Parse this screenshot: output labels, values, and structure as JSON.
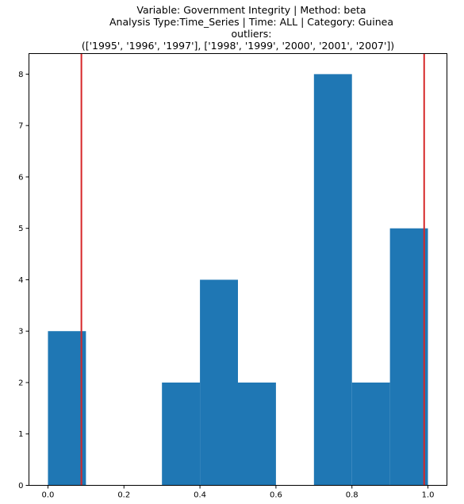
{
  "chart_data": {
    "type": "bar",
    "title_lines": [
      "Variable: Government Integrity | Method: beta",
      "Analysis Type:Time_Series | Time: ALL | Category: Guinea",
      "outliers:",
      "(['1995', '1996', '1997'], ['1998', '1999', '2000', '2001', '2007'])"
    ],
    "xlabel": "",
    "ylabel": "",
    "xlim": [
      -0.05,
      1.05
    ],
    "ylim": [
      0,
      8.4
    ],
    "x_ticks": [
      0.0,
      0.2,
      0.4,
      0.6,
      0.8,
      1.0
    ],
    "x_tick_labels": [
      "0.0",
      "0.2",
      "0.4",
      "0.6",
      "0.8",
      "1.0"
    ],
    "y_ticks": [
      0,
      1,
      2,
      3,
      4,
      5,
      6,
      7,
      8
    ],
    "y_tick_labels": [
      "0",
      "1",
      "2",
      "3",
      "4",
      "5",
      "6",
      "7",
      "8"
    ],
    "bins": [
      {
        "start": 0.0,
        "end": 0.1,
        "count": 3
      },
      {
        "start": 0.1,
        "end": 0.2,
        "count": 0
      },
      {
        "start": 0.2,
        "end": 0.3,
        "count": 0
      },
      {
        "start": 0.3,
        "end": 0.4,
        "count": 2
      },
      {
        "start": 0.4,
        "end": 0.5,
        "count": 4
      },
      {
        "start": 0.5,
        "end": 0.6,
        "count": 2
      },
      {
        "start": 0.6,
        "end": 0.7,
        "count": 0
      },
      {
        "start": 0.7,
        "end": 0.8,
        "count": 8
      },
      {
        "start": 0.8,
        "end": 0.9,
        "count": 2
      },
      {
        "start": 0.9,
        "end": 1.0,
        "count": 5
      }
    ],
    "threshold_lines": [
      0.088,
      0.99
    ],
    "bar_color": "#1f77b4",
    "line_color": "#d62728",
    "grid": false,
    "legend": "none"
  }
}
